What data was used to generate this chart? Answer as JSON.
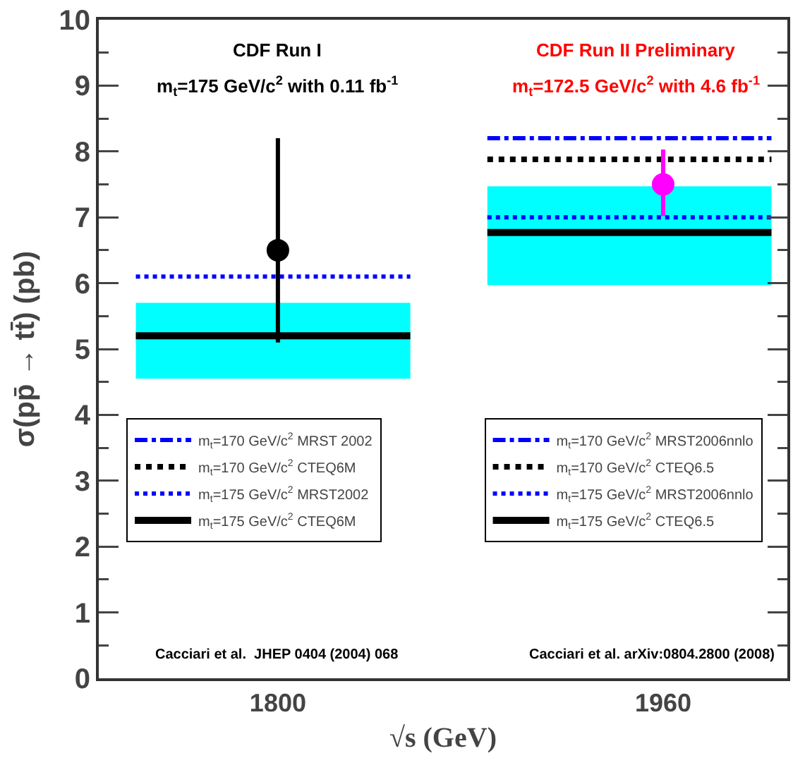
{
  "chart_data": {
    "type": "line",
    "xlabel": "√s (GeV)",
    "ylabel": "σ(pp̄ → tt̄) (pb)",
    "xlim": [
      1725.6,
      2011.6
    ],
    "xticks": [
      1800,
      1960
    ],
    "ylim": [
      0,
      10
    ],
    "yticks": [
      0,
      1,
      2,
      3,
      4,
      5,
      6,
      7,
      8,
      9,
      10
    ],
    "grid": false,
    "legend": "bottom",
    "marker": "none",
    "annotations": [
      "CDF Run I",
      "m$_{t}$=175 GeV/c$^{2}$ with 0.11 fb$^{-1}$",
      "CDF Run II Preliminary",
      "m$_{t}$=172.5 GeV/c$^{2}$ with 4.6 fb$^{-1}$",
      "Cacciari et al.  JHEP 0404 (2004) 068",
      "Cacciari et al. arXiv:0804.2800 (2008)"
    ],
    "series": [
      {
        "name": "m$_{t}$=170 GeV/c$^{2}$ MRST 2002",
        "color": "#0000ff",
        "line_style": "dashed"
      },
      {
        "name": "m$_{t}$=170 GeV/c$^{2}$ CTEQ6M",
        "color": "#000000",
        "line_style": "dotted"
      },
      {
        "name": "m$_{t}$=175 GeV/c$^{2}$ MRST2002",
        "color": "#0000ff",
        "line_style": "dotted",
        "x": [
          1741,
          1855
        ],
        "values": [
          6.1,
          6.1
        ]
      },
      {
        "name": "m$_{t}$=175 GeV/c$^{2}$ CTEQ6M",
        "color": "#000000",
        "line_style": "solid",
        "x": [
          1741,
          1855
        ],
        "values": [
          5.2,
          5.2
        ],
        "lower": [
          4.55,
          4.55
        ],
        "upper": [
          5.7,
          5.7
        ]
      },
      {
        "name": "m$_{t}$=170 GeV/c$^{2}$ MRST2006nnlo",
        "color": "#0000ff",
        "line_style": "dashed",
        "x": [
          1887,
          2005
        ],
        "values": [
          8.2,
          8.2
        ]
      },
      {
        "name": "m$_{t}$=170 GeV/c$^{2}$ CTEQ6.5",
        "color": "#000000",
        "line_style": "dotted",
        "x": [
          1887,
          2005
        ],
        "values": [
          7.88,
          7.88
        ]
      },
      {
        "name": "m$_{t}$=175 GeV/c$^{2}$ MRST2006nnlo",
        "color": "#0000ff",
        "line_style": "dotted",
        "x": [
          1887,
          2005
        ],
        "values": [
          7.0,
          7.0
        ]
      },
      {
        "name": "m$_{t}$=175 GeV/c$^{2}$ CTEQ6.5",
        "color": "#000000",
        "line_style": "solid",
        "x": [
          1887,
          2005
        ],
        "values": [
          6.77,
          6.77
        ],
        "lower": [
          5.97,
          5.97
        ],
        "upper": [
          7.47,
          7.47
        ]
      },
      {
        "type": "scatter",
        "marker": "circle",
        "colors": [
          "#000000",
          "#ff00ff"
        ],
        "x": [
          1800,
          1960
        ],
        "values": [
          6.5,
          7.5
        ],
        "errors": [
          [
            5.1,
            8.2
          ],
          [
            7.02,
            8.03
          ]
        ]
      }
    ]
  }
}
